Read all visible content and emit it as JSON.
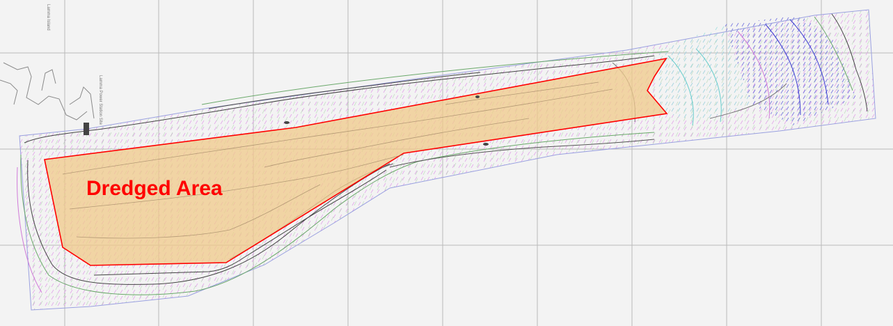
{
  "map": {
    "area_label": "Dredged Area",
    "small_labels": [
      "Lamma Island",
      "Lamma Power Station Site"
    ],
    "colors": {
      "background": "#f3f3f3",
      "grid": "#b9b9b9",
      "dredged_fill": "#f0c98a",
      "dredged_outline": "#ff0000",
      "label": "#ff0000",
      "survey_outline": "#9aa0e0",
      "contour_dark": "#444444",
      "contour_green": "#6aa86a",
      "contour_magenta": "#d07ad8",
      "contour_cyan": "#66cccc",
      "contour_blue": "#3a3ad0"
    }
  }
}
